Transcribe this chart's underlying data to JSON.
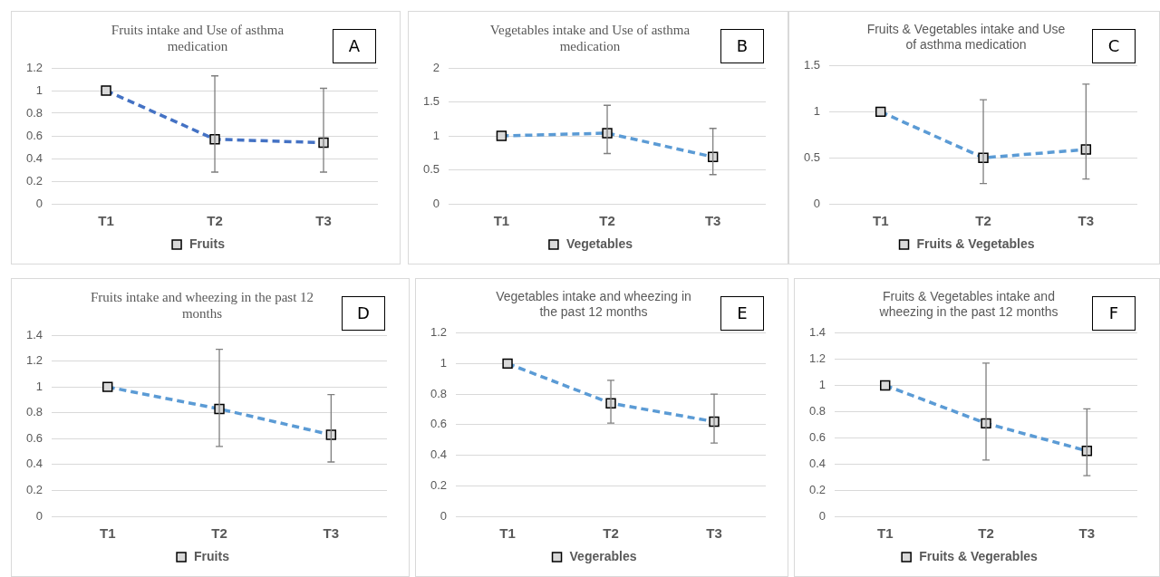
{
  "chart_data": [
    {
      "type": "line",
      "title": "Fruits intake and Use of asthma medication",
      "categories": [
        "T1",
        "T2",
        "T3"
      ],
      "series": [
        {
          "name": "Fruits",
          "color": "#4472c4",
          "values": [
            1,
            0.57,
            0.54
          ],
          "errors": [
            null,
            [
              0.28,
              1.13
            ],
            [
              0.28,
              1.02
            ]
          ]
        }
      ],
      "ylim": [
        0,
        1.2
      ],
      "yticks": [
        0,
        0.2,
        0.4,
        0.6,
        0.8,
        1,
        1.2
      ],
      "grid": "y",
      "legend": "bottom",
      "marker": "square",
      "line_style": "dashed",
      "annotations": [
        "A"
      ]
    },
    {
      "type": "line",
      "title": "Vegetables intake and Use of asthma medication",
      "categories": [
        "T1",
        "T2",
        "T3"
      ],
      "series": [
        {
          "name": "Vegetables",
          "color": "#5b9bd5",
          "values": [
            1,
            1.04,
            0.69
          ],
          "errors": [
            null,
            [
              0.74,
              1.45
            ],
            [
              0.43,
              1.11
            ]
          ]
        }
      ],
      "ylim": [
        0,
        2
      ],
      "yticks": [
        0,
        0.5,
        1,
        1.5,
        2
      ],
      "grid": "y",
      "legend": "bottom",
      "marker": "square",
      "line_style": "dashed",
      "annotations": [
        "B"
      ]
    },
    {
      "type": "line",
      "title": "Fruits & Vegetables intake and Use of asthma medication",
      "categories": [
        "T1",
        "T2",
        "T3"
      ],
      "series": [
        {
          "name": "Fruits & Vegetables",
          "color": "#5b9bd5",
          "values": [
            1,
            0.5,
            0.59
          ],
          "errors": [
            null,
            [
              0.22,
              1.13
            ],
            [
              0.27,
              1.3
            ]
          ]
        }
      ],
      "ylim": [
        0,
        1.5
      ],
      "yticks": [
        0,
        0.5,
        1,
        1.5
      ],
      "grid": "y",
      "legend": "bottom",
      "marker": "square",
      "line_style": "dashed",
      "annotations": [
        "C"
      ]
    },
    {
      "type": "line",
      "title": "Fruits intake and wheezing in the past 12 months",
      "categories": [
        "T1",
        "T2",
        "T3"
      ],
      "series": [
        {
          "name": "Fruits",
          "color": "#5b9bd5",
          "values": [
            1,
            0.83,
            0.63
          ],
          "errors": [
            null,
            [
              0.54,
              1.29
            ],
            [
              0.42,
              0.94
            ]
          ]
        }
      ],
      "ylim": [
        0,
        1.4
      ],
      "yticks": [
        0,
        0.2,
        0.4,
        0.6,
        0.8,
        1,
        1.2,
        1.4
      ],
      "grid": "y",
      "legend": "bottom",
      "marker": "square",
      "line_style": "dashed",
      "annotations": [
        "D"
      ]
    },
    {
      "type": "line",
      "title": "Vegetables intake and wheezing in the past 12 months",
      "categories": [
        "T1",
        "T2",
        "T3"
      ],
      "series": [
        {
          "name": "Vegerables",
          "color": "#5b9bd5",
          "values": [
            1,
            0.74,
            0.62
          ],
          "errors": [
            null,
            [
              0.61,
              0.89
            ],
            [
              0.48,
              0.8
            ]
          ]
        }
      ],
      "ylim": [
        0,
        1.2
      ],
      "yticks": [
        0,
        0.2,
        0.4,
        0.6,
        0.8,
        1,
        1.2
      ],
      "grid": "y",
      "legend": "bottom",
      "marker": "square",
      "line_style": "dashed",
      "annotations": [
        "E"
      ]
    },
    {
      "type": "line",
      "title": "Fruits & Vegetables intake and wheezing in the past 12 months",
      "categories": [
        "T1",
        "T2",
        "T3"
      ],
      "series": [
        {
          "name": "Fruits & Vegerables",
          "color": "#5b9bd5",
          "values": [
            1,
            0.71,
            0.5
          ],
          "errors": [
            null,
            [
              0.43,
              1.17
            ],
            [
              0.31,
              0.82
            ]
          ]
        }
      ],
      "ylim": [
        0,
        1.4
      ],
      "yticks": [
        0,
        0.2,
        0.4,
        0.6,
        0.8,
        1,
        1.2,
        1.4
      ],
      "grid": "y",
      "legend": "bottom",
      "marker": "square",
      "line_style": "dashed",
      "annotations": [
        "F"
      ]
    }
  ]
}
